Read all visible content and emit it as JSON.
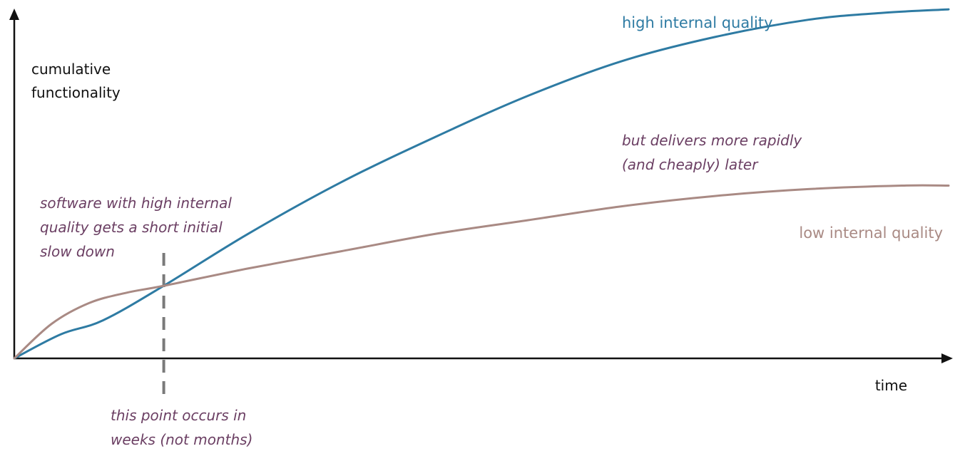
{
  "chart_data": {
    "type": "line",
    "grid": false,
    "xlabel": "time",
    "ylabel_lines": [
      "cumulative",
      "functionality"
    ],
    "x_range": [
      0,
      1
    ],
    "y_range": [
      0,
      1
    ],
    "colors": {
      "high": "#2e7ba3",
      "low": "#a98a84",
      "notes": "#6b3f63",
      "axis": "#111111",
      "marker": "#7a7a7a"
    },
    "series": [
      {
        "name": "high internal quality",
        "x": [
          0.0,
          0.05,
          0.095,
          0.16,
          0.25,
          0.35,
          0.45,
          0.55,
          0.65,
          0.75,
          0.85,
          0.93,
          1.0
        ],
        "y": [
          0.0,
          0.07,
          0.11,
          0.21,
          0.36,
          0.51,
          0.64,
          0.76,
          0.86,
          0.93,
          0.98,
          1.0,
          1.01
        ]
      },
      {
        "name": "low internal quality",
        "x": [
          0.0,
          0.04,
          0.08,
          0.12,
          0.16,
          0.25,
          0.35,
          0.45,
          0.55,
          0.65,
          0.75,
          0.85,
          0.95,
          1.0
        ],
        "y": [
          0.0,
          0.1,
          0.16,
          0.19,
          0.21,
          0.26,
          0.31,
          0.36,
          0.4,
          0.44,
          0.47,
          0.49,
          0.5,
          0.5
        ]
      }
    ],
    "crossover_x": 0.16,
    "annotations": [
      {
        "id": "slowdown",
        "lines": [
          "software with high internal",
          "quality gets a short initial",
          "slow down"
        ]
      },
      {
        "id": "later",
        "lines": [
          "but delivers more rapidly",
          "(and cheaply) later"
        ]
      },
      {
        "id": "crossover",
        "lines": [
          "this point occurs in",
          "weeks (not months)"
        ]
      }
    ]
  }
}
